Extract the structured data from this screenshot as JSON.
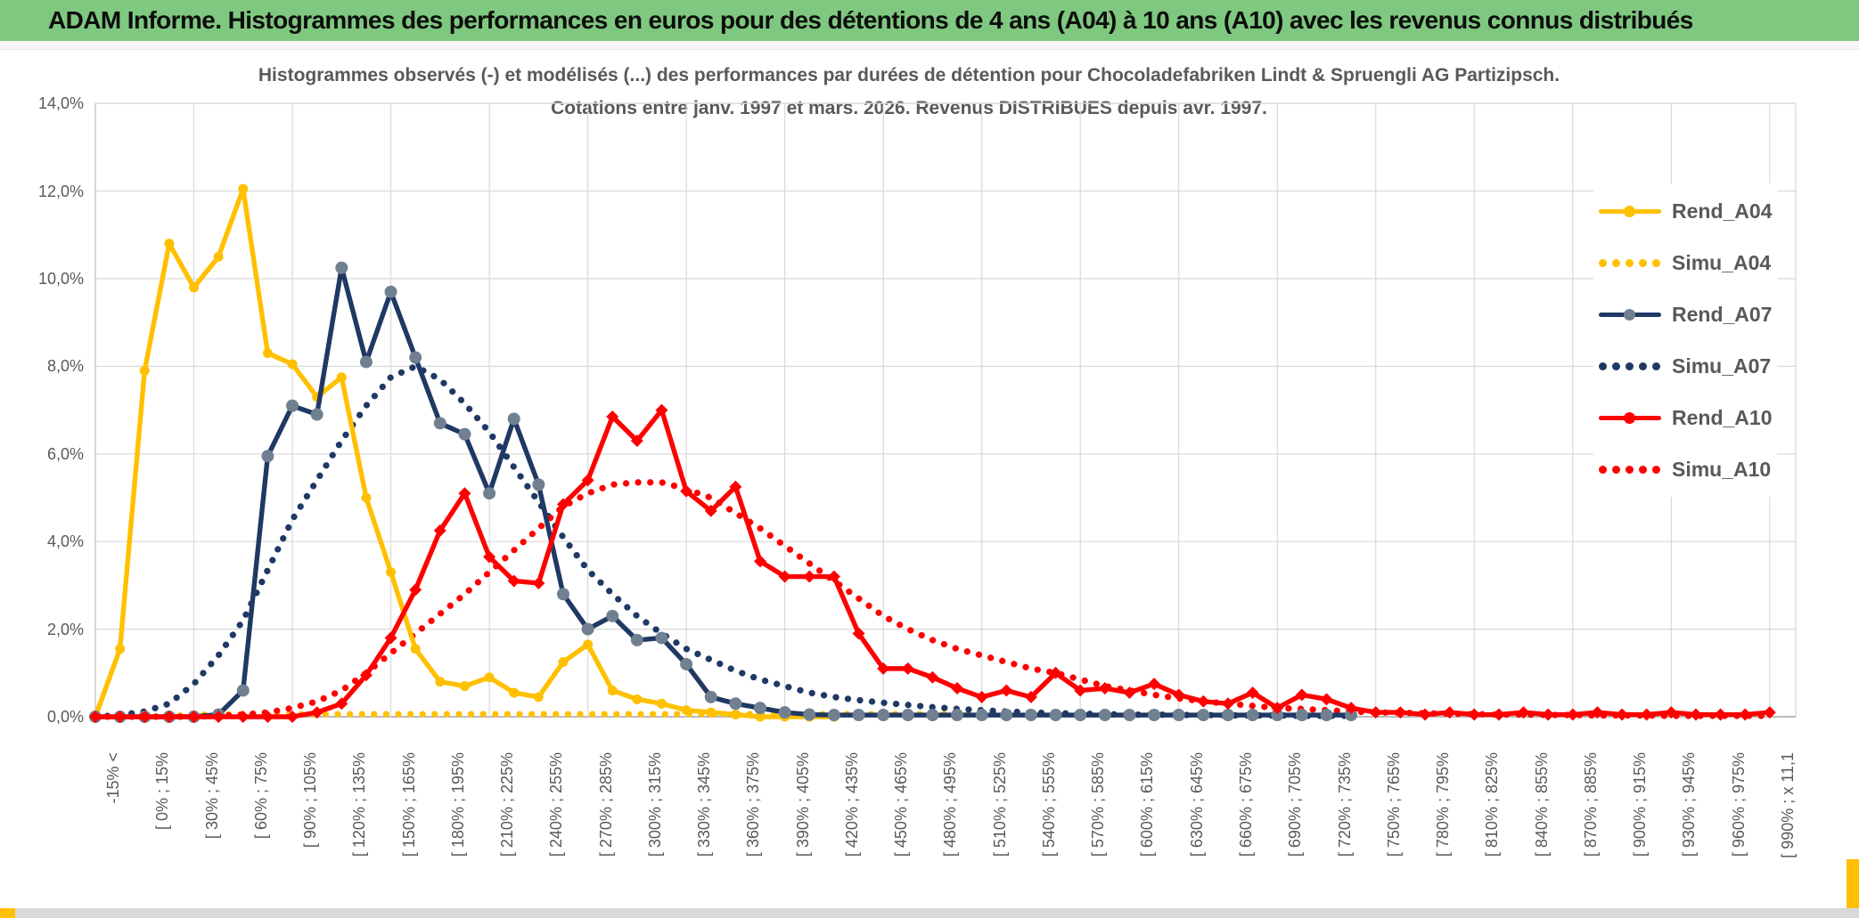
{
  "window": {
    "title": "ADAM Informe. Histogrammes des performances en euros pour des détentions de 4 ans (A04) à 10 ans (A10) avec les revenus connus distribués"
  },
  "chart": {
    "title_line1": "Histogrammes observés (-) et modélisés (...) des performances par durées de détention pour Chocoladefabriken Lindt & Spruengli AG Partizipsch.",
    "title_line2": "Cotations entre janv. 1997 et mars. 2026. Revenus DISTRIBUES depuis avr. 1997."
  },
  "colors": {
    "gold": "#FFC000",
    "navy": "#1F3864",
    "navy_marker": "#708090",
    "red": "#FF0000",
    "grid": "#D9D9D9",
    "axis_line": "#A6A6A6",
    "text_gray": "#595959",
    "banner_green": "#7FC87F",
    "bottom_strip": "#D9D9D9"
  },
  "chart_data": {
    "type": "line",
    "title": "Histogrammes observés (-) et modélisés (...) des performances par durées de détention pour Chocoladefabriken Lindt & Spruengli AG Partizipsch. Cotations entre janv. 1997 et mars. 2026. Revenus DISTRIBUES depuis avr. 1997.",
    "ylim": [
      0,
      14
    ],
    "grid": true,
    "legend_position": "right",
    "y_tick_labels": [
      "0,0%",
      "2,0%",
      "4,0%",
      "6,0%",
      "8,0%",
      "10,0%",
      "12,0%",
      "14,0%"
    ],
    "categories": [
      "-15% <",
      "",
      "[ 0% ; 15%",
      "",
      "[ 30% ; 45%",
      "",
      "[ 60% ; 75%",
      "",
      "[ 90% ; 105%",
      "",
      "[ 120% ; 135%",
      "",
      "[ 150% ; 165%",
      "",
      "[ 180% ; 195%",
      "",
      "[ 210% ; 225%",
      "",
      "[ 240% ; 255%",
      "",
      "[ 270% ; 285%",
      "",
      "[ 300% ; 315%",
      "",
      "[ 330% ; 345%",
      "",
      "[ 360% ; 375%",
      "",
      "[ 390% ; 405%",
      "",
      "[ 420% ; 435%",
      "",
      "[ 450% ; 465%",
      "",
      "[ 480% ; 495%",
      "",
      "[ 510% ; 525%",
      "",
      "[ 540% ; 555%",
      "",
      "[ 570% ; 585%",
      "",
      "[ 600% ; 615%",
      "",
      "[ 630% ; 645%",
      "",
      "[ 660% ; 675%",
      "",
      "[ 690% ; 705%",
      "",
      "[ 720% ; 735%",
      "",
      "[ 750% ; 765%",
      "",
      "[ 780% ; 795%",
      "",
      "[ 810% ; 825%",
      "",
      "[ 840% ; 855%",
      "",
      "[ 870% ; 885%",
      "",
      "[ 900% ; 915%",
      "",
      "[ 930% ; 945%",
      "",
      "[ 960% ; 975%",
      "",
      "[ 990% ; x 11,1"
    ],
    "series": [
      {
        "name": "Rend_A04",
        "color": "#FFC000",
        "line": "solid",
        "marker": "circle",
        "marker_color": "#FFC000",
        "values": [
          0,
          1.55,
          7.9,
          10.8,
          9.8,
          10.5,
          12.05,
          8.3,
          8.05,
          7.3,
          7.75,
          5.0,
          3.3,
          1.55,
          0.8,
          0.7,
          0.9,
          0.55,
          0.45,
          1.25,
          1.65,
          0.6,
          0.4,
          0.3,
          0.15,
          0.1,
          0.05,
          0,
          0,
          0,
          0,
          null,
          null,
          null,
          null,
          null,
          null,
          null,
          null,
          null,
          null,
          null,
          null,
          null,
          null,
          null,
          null,
          null,
          null,
          null,
          null,
          null,
          null,
          null,
          null,
          null,
          null,
          null,
          null,
          null,
          null,
          null,
          null,
          null,
          null,
          null,
          null,
          null,
          null
        ]
      },
      {
        "name": "Simu_A04",
        "color": "#FFC000",
        "line": "dotted",
        "marker": "none",
        "marker_color": "#FFC000",
        "values": [
          0,
          0,
          0,
          0.02,
          0.04,
          0.06,
          0.06,
          0.06,
          0.06,
          0.06,
          0.06,
          0.06,
          0.06,
          0.06,
          0.06,
          0.06,
          0.06,
          0.06,
          0.06,
          0.06,
          0.06,
          0.06,
          0.06,
          0.06,
          0.06,
          0.06,
          0.06,
          0.06,
          0.06,
          0.06,
          0.06,
          0.06,
          0.06,
          0.06,
          0.06,
          0.06,
          0.06,
          0.06,
          0.06,
          0.06,
          0.06,
          0.05,
          0.05,
          0.05,
          0.05,
          null,
          null,
          null,
          null,
          null,
          null,
          null,
          null,
          null,
          null,
          null,
          null,
          null,
          null,
          null,
          null,
          null,
          null,
          null,
          null,
          null,
          null,
          null,
          null
        ]
      },
      {
        "name": "Rend_A07",
        "color": "#1F3864",
        "line": "solid",
        "marker": "circle",
        "marker_color": "#708090",
        "values": [
          0,
          0,
          0,
          0,
          0,
          0.05,
          0.6,
          5.95,
          7.1,
          6.9,
          10.25,
          8.1,
          9.7,
          8.2,
          6.7,
          6.45,
          5.1,
          6.8,
          5.3,
          2.8,
          2.0,
          2.3,
          1.75,
          1.8,
          1.2,
          0.45,
          0.3,
          0.2,
          0.1,
          0.05,
          0.04,
          0.04,
          0.04,
          0.04,
          0.04,
          0.04,
          0.04,
          0.04,
          0.04,
          0.04,
          0.04,
          0.04,
          0.04,
          0.04,
          0.04,
          0.04,
          0.04,
          0.04,
          0.04,
          0.04,
          0.04,
          0.04,
          null,
          null,
          null,
          null,
          null,
          null,
          null,
          null,
          null,
          null,
          null,
          null,
          null,
          null,
          null,
          null,
          null
        ]
      },
      {
        "name": "Simu_A07",
        "color": "#1F3864",
        "line": "dotted",
        "marker": "none",
        "marker_color": "#1F3864",
        "values": [
          0,
          0.04,
          0.12,
          0.3,
          0.75,
          1.4,
          2.2,
          3.35,
          4.5,
          5.4,
          6.3,
          7.1,
          7.75,
          8.0,
          7.7,
          7.15,
          6.5,
          5.7,
          4.9,
          4.1,
          3.35,
          2.8,
          2.3,
          1.9,
          1.55,
          1.3,
          1.05,
          0.85,
          0.7,
          0.55,
          0.45,
          0.38,
          0.32,
          0.27,
          0.22,
          0.18,
          0.15,
          0.12,
          0.1,
          0.08,
          0.07,
          0.06,
          0.05,
          0.05,
          0.04,
          0.04,
          0.03,
          0.03,
          0.03,
          0.02,
          0.02,
          0.02,
          null,
          null,
          null,
          null,
          null,
          null,
          null,
          null,
          null,
          null,
          null,
          null,
          null,
          null,
          null,
          null,
          null
        ]
      },
      {
        "name": "Rend_A10",
        "color": "#FF0000",
        "line": "solid",
        "marker": "diamond",
        "marker_color": "#FF0000",
        "values": [
          0,
          0,
          0,
          0,
          0,
          0,
          0,
          0,
          0,
          0.1,
          0.3,
          0.95,
          1.8,
          2.9,
          4.25,
          5.1,
          3.65,
          3.1,
          3.05,
          4.85,
          5.4,
          6.85,
          6.3,
          7.0,
          5.15,
          4.7,
          5.25,
          3.55,
          3.2,
          3.2,
          3.2,
          1.9,
          1.1,
          1.1,
          0.9,
          0.65,
          0.45,
          0.6,
          0.45,
          1.0,
          0.6,
          0.65,
          0.55,
          0.75,
          0.5,
          0.35,
          0.3,
          0.55,
          0.2,
          0.5,
          0.4,
          0.2,
          0.1,
          0.1,
          0.05,
          0.1,
          0.05,
          0.05,
          0.1,
          0.05,
          0.05,
          0.1,
          0.05,
          0.05,
          0.1,
          0.05,
          0.05,
          0.05,
          0.1
        ]
      },
      {
        "name": "Simu_A10",
        "color": "#FF0000",
        "line": "dotted",
        "marker": "none",
        "marker_color": "#FF0000",
        "values": [
          0,
          0,
          0,
          0,
          0,
          0.02,
          0.05,
          0.1,
          0.2,
          0.35,
          0.6,
          1.0,
          1.45,
          1.9,
          2.35,
          2.8,
          3.3,
          3.8,
          4.3,
          4.8,
          5.1,
          5.3,
          5.35,
          5.35,
          5.2,
          5.0,
          4.65,
          4.3,
          3.9,
          3.5,
          3.1,
          2.7,
          2.3,
          2.0,
          1.75,
          1.55,
          1.4,
          1.25,
          1.1,
          1.0,
          0.85,
          0.7,
          0.6,
          0.5,
          0.42,
          0.35,
          0.3,
          0.25,
          0.2,
          0.18,
          0.15,
          0.12,
          0.1,
          0.09,
          0.08,
          0.07,
          0.06,
          0.05,
          0.05,
          0.04,
          0.04,
          0.03,
          0.03,
          0.03,
          0.02,
          0.02,
          0.02,
          0.02,
          0.02
        ]
      }
    ]
  }
}
